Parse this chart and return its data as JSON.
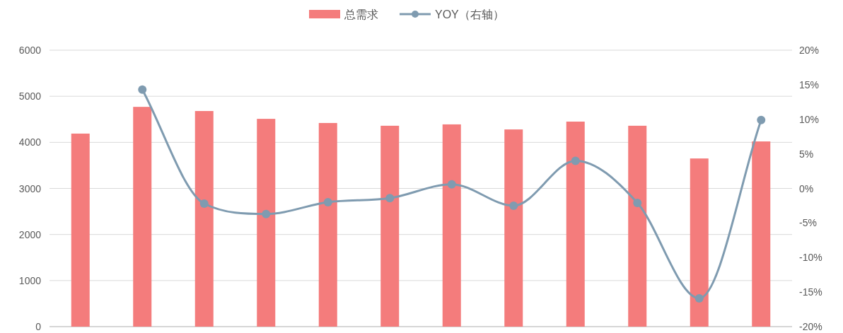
{
  "chart_data": {
    "type": "bar",
    "categories": [
      null,
      null,
      null,
      null,
      null,
      null,
      null,
      null,
      null,
      null,
      null,
      null
    ],
    "series": [
      {
        "name": "总需求",
        "color": "#f47c7c",
        "values": [
          4190,
          4770,
          4680,
          4510,
          4420,
          4360,
          4390,
          4280,
          4450,
          4360,
          3650,
          4020
        ]
      },
      {
        "name": "YOY（右轴）",
        "type": "line",
        "axis": "y2",
        "color": "#7f9bb0",
        "marker": "circle",
        "values": [
          null,
          14.3,
          -2.2,
          -3.7,
          -2.0,
          -1.4,
          0.6,
          -2.5,
          4.0,
          -2.1,
          -15.9,
          9.9
        ]
      }
    ],
    "ylim": [
      0,
      6000
    ],
    "yticks": [
      0,
      1000,
      2000,
      3000,
      4000,
      5000,
      6000
    ],
    "y2lim": [
      -20,
      20
    ],
    "y2ticks": [
      {
        "value": -20,
        "label": "-20%"
      },
      {
        "value": -15,
        "label": "-15%"
      },
      {
        "value": -10,
        "label": "-10%"
      },
      {
        "value": -5,
        "label": "-5%"
      },
      {
        "value": 0,
        "label": "0%"
      },
      {
        "value": 5,
        "label": "5%"
      },
      {
        "value": 10,
        "label": "10%"
      },
      {
        "value": 15,
        "label": "15%"
      },
      {
        "value": 20,
        "label": "20%"
      }
    ],
    "grid": "y",
    "legend": "top",
    "tick_labels": "y"
  }
}
